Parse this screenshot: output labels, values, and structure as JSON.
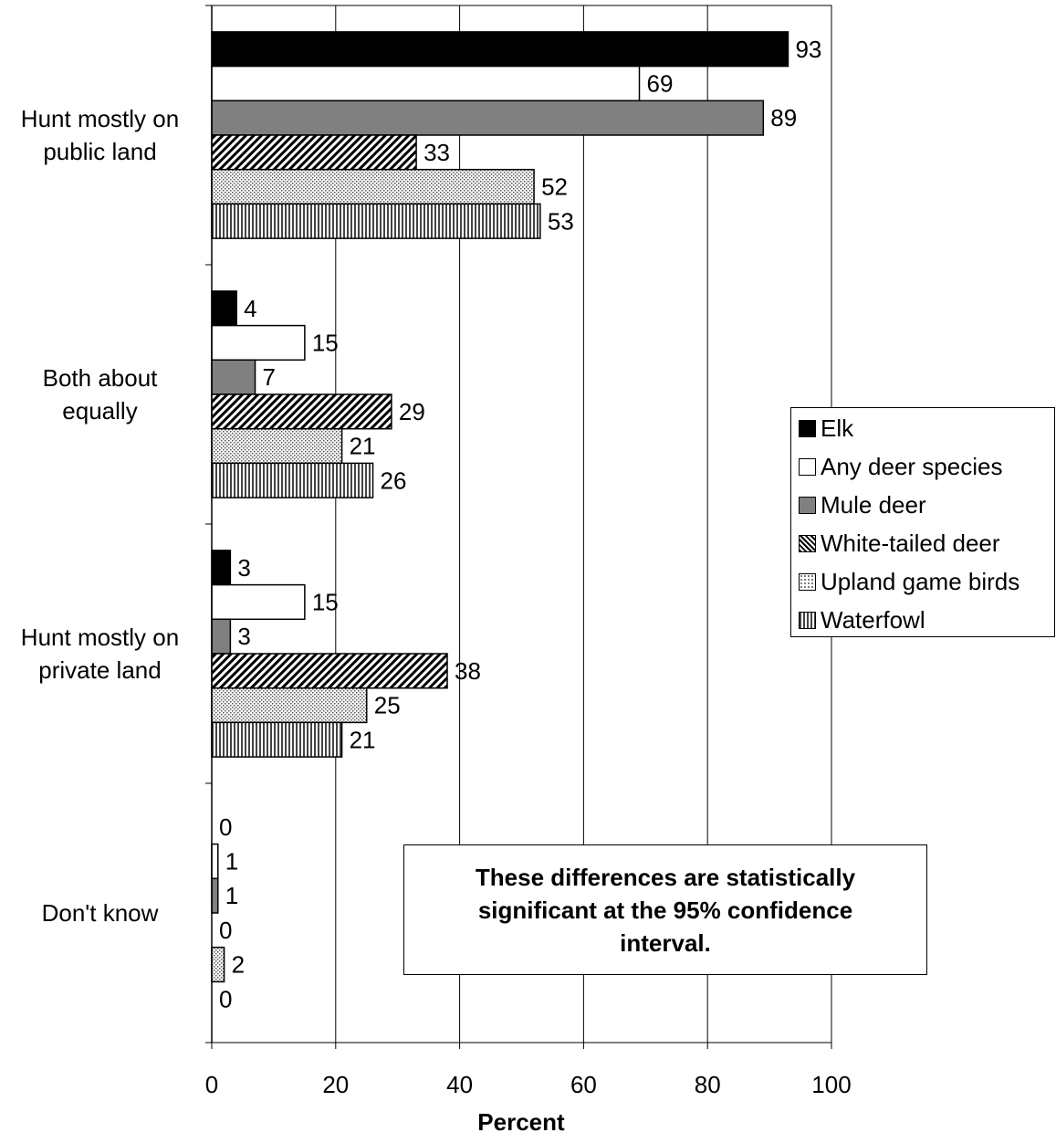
{
  "chart_data": {
    "type": "bar",
    "orientation": "horizontal",
    "categories": [
      "Hunt mostly on\npublic land",
      "Both about\nequally",
      "Hunt mostly on\nprivate land",
      "Don't know"
    ],
    "series": [
      {
        "name": "Elk",
        "values": [
          93,
          4,
          3,
          0
        ],
        "color": "#000000",
        "pattern": "solid-black"
      },
      {
        "name": "Any deer species",
        "values": [
          69,
          15,
          15,
          1
        ],
        "color": "#ffffff",
        "pattern": "solid-white"
      },
      {
        "name": "Mule deer",
        "values": [
          89,
          7,
          3,
          1
        ],
        "color": "#808080",
        "pattern": "solid-gray"
      },
      {
        "name": "White-tailed deer",
        "values": [
          33,
          29,
          38,
          0
        ],
        "color": "#000000",
        "pattern": "diagonal-hatch"
      },
      {
        "name": "Upland game birds",
        "values": [
          52,
          21,
          25,
          2
        ],
        "color": "#bfbfbf",
        "pattern": "dots"
      },
      {
        "name": "Waterfowl",
        "values": [
          53,
          26,
          21,
          0
        ],
        "color": "#808080",
        "pattern": "vertical-stripes"
      }
    ],
    "xlabel": "Percent",
    "ylabel": "",
    "xlim": [
      0,
      100
    ],
    "xticks": [
      0,
      20,
      40,
      60,
      80,
      100
    ],
    "grid": "vertical",
    "legend_position": "right",
    "annotation": "These differences are statistically significant at the 95% confidence interval."
  }
}
